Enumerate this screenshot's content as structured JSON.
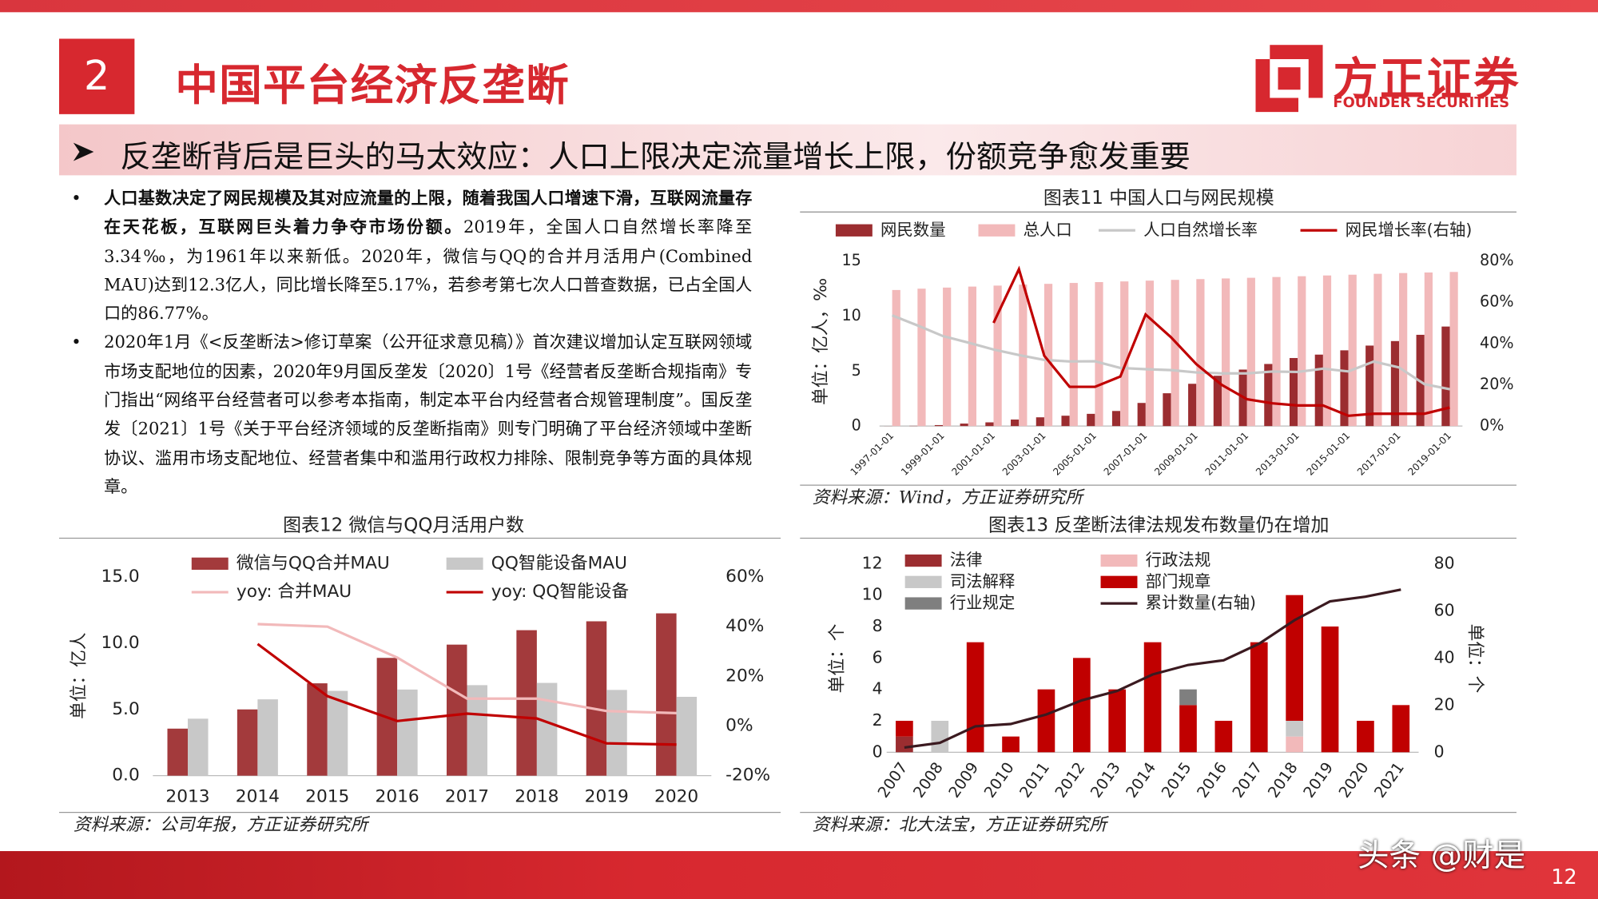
{
  "header": {
    "number": "2",
    "title": "中国平台经济反垄断",
    "logo": "方正证券",
    "logo_en": "FOUNDER SECURITIES"
  },
  "banner": "反垄断背后是巨头的马太效应：人口上限决定流量增长上限，份额竞争愈发重要",
  "bullets": [
    {
      "bold": "人口基数决定了网民规模及其对应流量的上限，随着我国人口增速下滑，互联网流量存在天花板，互联网巨头着力争夺市场份额。",
      "text": "2019年，全国人口自然增长率降至3.34‰，为1961年以来新低。2020年，微信与QQ的合并月活用户(Combined MAU)达到12.3亿人，同比增长降至5.17%，若参考第七次人口普查数据，已占全国人口的86.77%。"
    },
    {
      "text": "2020年1月《<反垄断法>修订草案（公开征求意见稿）》首次建议增加认定互联网领域市场支配地位的因素，2020年9月国反垄发〔2020〕1号《经营者反垄断合规指南》专门指出“网络平台经营者可以参考本指南，制定本平台内经营者合规管理制度”。国反垄发〔2021〕1号《关于平台经济领域的反垄断指南》则专门明确了平台经济领域中垄断协议、滥用市场支配地位、经营者集中和滥用行政权力排除、限制竞争等方面的具体规章。"
    }
  ],
  "chart_data": [
    {
      "type": "bar",
      "title": "图表11 中国人口与网民规模",
      "source": "资料来源：Wind，方正证券研究所",
      "ylabel": "单位：亿人，‰",
      "categories": [
        "1997-01-01",
        null,
        "1999-01-01",
        null,
        "2001-01-01",
        null,
        "2003-01-01",
        null,
        "2005-01-01",
        null,
        "2007-01-01",
        null,
        "2009-01-01",
        null,
        "2011-01-01",
        null,
        "2013-01-01",
        null,
        "2015-01-01",
        null,
        "2017-01-01",
        null,
        "2019-01-01"
      ],
      "series": [
        {
          "name": "网民数量",
          "type": "bar",
          "color": "#9b2d30",
          "values": [
            0.0062,
            0.021,
            0.089,
            0.225,
            0.337,
            0.591,
            0.795,
            0.94,
            1.11,
            1.37,
            2.1,
            2.98,
            3.84,
            4.57,
            5.13,
            5.64,
            6.18,
            6.49,
            6.88,
            7.31,
            7.72,
            8.29,
            9.04
          ]
        },
        {
          "name": "总人口",
          "type": "bar",
          "color": "#f2b9ba",
          "values": [
            12.36,
            12.48,
            12.58,
            12.67,
            12.76,
            12.85,
            12.92,
            13.0,
            13.08,
            13.14,
            13.21,
            13.28,
            13.35,
            13.41,
            13.47,
            13.54,
            13.61,
            13.68,
            13.75,
            13.83,
            13.9,
            13.95,
            14.0
          ]
        },
        {
          "name": "人口自然增长率",
          "type": "line",
          "color": "#c8c8c8",
          "values": [
            10.06,
            9.14,
            8.18,
            7.58,
            6.95,
            6.45,
            6.01,
            5.87,
            5.89,
            5.28,
            5.17,
            5.08,
            4.87,
            4.79,
            4.79,
            4.95,
            4.92,
            5.21,
            4.96,
            5.86,
            5.32,
            3.81,
            3.34
          ]
        },
        {
          "name": "网民增长率(右轴)",
          "type": "line",
          "axis": "y2",
          "color": "#c00000",
          "values": [
            null,
            null,
            null,
            null,
            50,
            76,
            34,
            19,
            19,
            24,
            54,
            43,
            30,
            20,
            13,
            11,
            10,
            10,
            5,
            6,
            6,
            6,
            9
          ]
        }
      ],
      "ylim": [
        0,
        15
      ],
      "yticks": [
        0,
        5,
        10,
        15
      ],
      "y2lim": [
        0,
        80
      ],
      "y2ticks": [
        {
          "value": 0,
          "label": "0%"
        },
        {
          "value": 20,
          "label": "20%"
        },
        {
          "value": 40,
          "label": "40%"
        },
        {
          "value": 60,
          "label": "60%"
        },
        {
          "value": 80,
          "label": "80%"
        }
      ],
      "grid": false
    },
    {
      "type": "bar",
      "title": "图表12 微信与QQ月活用户数",
      "source": "资料来源：公司年报，方正证券研究所",
      "ylabel": "单位：亿人",
      "categories": [
        "2013",
        "2014",
        "2015",
        "2016",
        "2017",
        "2018",
        "2019",
        "2020"
      ],
      "series": [
        {
          "name": "微信与QQ合并MAU",
          "type": "bar",
          "color": "#a33a3c",
          "values": [
            3.55,
            5.0,
            6.97,
            8.89,
            9.89,
            10.98,
            11.65,
            12.25
          ]
        },
        {
          "name": "QQ智能设备MAU",
          "type": "bar",
          "color": "#c8c8c8",
          "values": [
            4.3,
            5.76,
            6.4,
            6.5,
            6.83,
            7.0,
            6.47,
            5.95
          ]
        },
        {
          "name": "yoy: 合并MAU",
          "type": "line",
          "axis": "y2",
          "color": "#f2b9ba",
          "values": [
            null,
            41,
            40,
            27.5,
            11,
            11,
            6,
            5.17
          ]
        },
        {
          "name": "yoy: QQ智能设备",
          "type": "line",
          "axis": "y2",
          "color": "#c00000",
          "values": [
            null,
            33,
            12,
            2,
            5,
            3,
            -7,
            -7.5
          ]
        }
      ],
      "ylim": [
        0,
        15
      ],
      "yticks": [
        {
          "value": 0,
          "label": "0.0"
        },
        {
          "value": 5,
          "label": "5.0"
        },
        {
          "value": 10,
          "label": "10.0"
        },
        {
          "value": 15,
          "label": "15.0"
        }
      ],
      "y2lim": [
        -20,
        60
      ],
      "y2ticks": [
        {
          "value": -20,
          "label": "-20%"
        },
        {
          "value": 0,
          "label": "0%"
        },
        {
          "value": 20,
          "label": "20%"
        },
        {
          "value": 40,
          "label": "40%"
        },
        {
          "value": 60,
          "label": "60%"
        }
      ],
      "grid": false
    },
    {
      "type": "stacked_bar",
      "title": "图表13 反垄断法律法规发布数量仍在增加",
      "source": "资料来源：北大法宝，方正证券研究所",
      "ylabel": "单位：个",
      "y2label": "单位：个",
      "categories": [
        "2007",
        "2008",
        "2009",
        "2010",
        "2011",
        "2012",
        "2013",
        "2014",
        "2015",
        "2016",
        "2017",
        "2018",
        "2019",
        "2020",
        "2021"
      ],
      "series": [
        {
          "name": "法律",
          "type": "bar",
          "color": "#9b2d30",
          "values": [
            1,
            0,
            0,
            0,
            0,
            0,
            0,
            0,
            0,
            0,
            0,
            0,
            0,
            0,
            0
          ]
        },
        {
          "name": "行政法规",
          "type": "bar",
          "color": "#f2b9ba",
          "values": [
            0,
            0,
            0,
            0,
            0,
            0,
            0,
            0,
            0,
            0,
            0,
            1,
            0,
            0,
            0
          ]
        },
        {
          "name": "司法解释",
          "type": "bar",
          "color": "#c8c8c8",
          "values": [
            0,
            2,
            0,
            0,
            0,
            0,
            0,
            0,
            0,
            0,
            0,
            1,
            0,
            0,
            0
          ]
        },
        {
          "name": "部门规章",
          "type": "bar",
          "color": "#c00000",
          "values": [
            1,
            0,
            7,
            1,
            4,
            6,
            4,
            7,
            3,
            2,
            7,
            8,
            8,
            2,
            3
          ]
        },
        {
          "name": "行业规定",
          "type": "bar",
          "color": "#7f7f7f",
          "values": [
            0,
            0,
            0,
            0,
            0,
            0,
            0,
            0,
            1,
            0,
            0,
            0,
            0,
            0,
            0
          ]
        },
        {
          "name": "累计数量(右轴)",
          "type": "line",
          "axis": "y2",
          "color": "#3b1a20",
          "values": [
            2,
            4,
            11,
            12,
            16,
            22,
            26,
            33,
            37,
            39,
            46,
            56,
            64,
            66,
            69
          ]
        }
      ],
      "ylim": [
        0,
        12
      ],
      "yticks": [
        0,
        2,
        4,
        6,
        8,
        10,
        12
      ],
      "y2lim": [
        0,
        80
      ],
      "y2ticks": [
        0,
        20,
        40,
        60,
        80
      ],
      "grid": false
    }
  ],
  "footer": {
    "watermark": "头条 @财是",
    "page": "12"
  }
}
